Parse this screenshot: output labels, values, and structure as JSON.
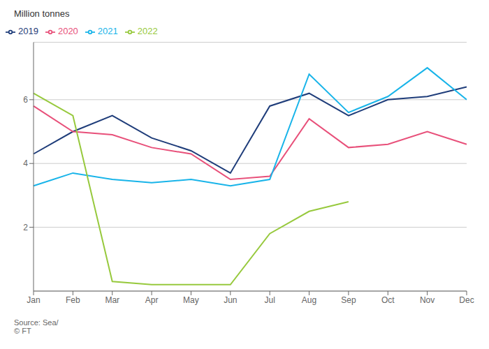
{
  "chart_data": {
    "type": "line",
    "ylabel": "Million tonnes",
    "categories": [
      "Jan",
      "Feb",
      "Mar",
      "Apr",
      "May",
      "Jun",
      "Jul",
      "Aug",
      "Sep",
      "Oct",
      "Nov",
      "Dec"
    ],
    "series": [
      {
        "name": "2019",
        "color": "#1f3d7a",
        "values": [
          4.3,
          5.0,
          5.5,
          4.8,
          4.4,
          3.7,
          5.8,
          6.2,
          5.5,
          6.0,
          6.1,
          6.4
        ]
      },
      {
        "name": "2020",
        "color": "#e8507a",
        "values": [
          5.8,
          5.0,
          4.9,
          4.5,
          4.3,
          3.5,
          3.6,
          5.4,
          4.5,
          4.6,
          5.0,
          4.6
        ]
      },
      {
        "name": "2021",
        "color": "#18b4e9",
        "values": [
          3.3,
          3.7,
          3.5,
          3.4,
          3.5,
          3.3,
          3.5,
          6.8,
          5.6,
          6.1,
          7.0,
          6.0
        ]
      },
      {
        "name": "2022",
        "color": "#97c93d",
        "values": [
          6.2,
          5.5,
          0.3,
          0.2,
          0.2,
          0.2,
          1.8,
          2.5,
          2.8,
          null,
          null,
          null
        ]
      }
    ],
    "ylim": [
      0,
      7.8
    ],
    "yticks": [
      2,
      4,
      6
    ],
    "grid": true,
    "legend": "upper left",
    "annotations": [
      "Source: Sea/\n© FT"
    ]
  }
}
